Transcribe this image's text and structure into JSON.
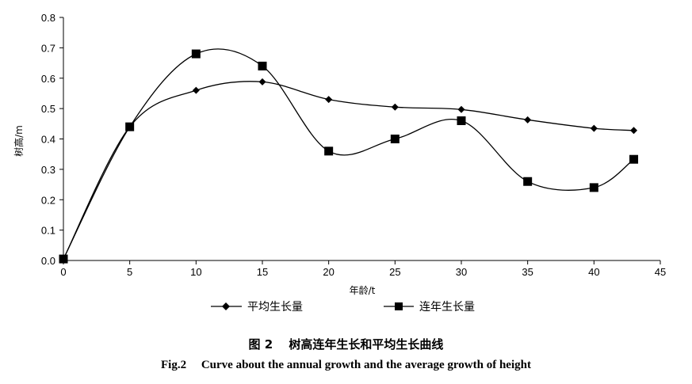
{
  "chart_data": {
    "type": "line",
    "xlabel": "年龄/t",
    "ylabel": "树高/m",
    "xlim": [
      0,
      45
    ],
    "ylim": [
      0.0,
      0.8
    ],
    "xticks": [
      "0",
      "5",
      "10",
      "15",
      "20",
      "25",
      "30",
      "35",
      "40",
      "45"
    ],
    "yticks": [
      "0.0",
      "0.1",
      "0.2",
      "0.3",
      "0.4",
      "0.5",
      "0.6",
      "0.7",
      "0.8"
    ],
    "grid": false,
    "legend_position": "bottom",
    "series": [
      {
        "name": "平均生长量",
        "marker": "diamond",
        "x": [
          0,
          5,
          10,
          15,
          20,
          25,
          30,
          35,
          40,
          43
        ],
        "y": [
          0.005,
          0.44,
          0.56,
          0.588,
          0.53,
          0.505,
          0.497,
          0.463,
          0.435,
          0.428
        ]
      },
      {
        "name": "连年生长量",
        "marker": "square",
        "x": [
          0,
          5,
          10,
          15,
          20,
          25,
          30,
          35,
          40,
          43
        ],
        "y": [
          0.005,
          0.44,
          0.68,
          0.64,
          0.36,
          0.4,
          0.46,
          0.26,
          0.24,
          0.333
        ]
      }
    ],
    "color": "#000000"
  },
  "caption": {
    "cn": "图 2　 树高连年生长和平均生长曲线",
    "en": "Fig.2　 Curve about the annual growth and the average growth of height"
  }
}
